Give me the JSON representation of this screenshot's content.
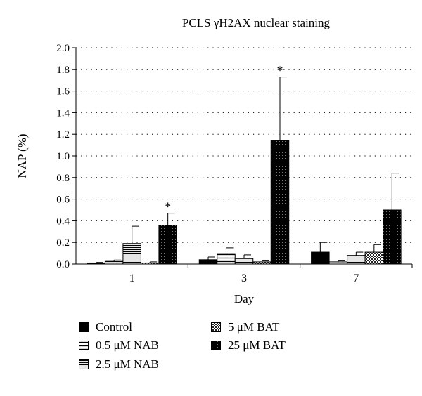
{
  "chart_data": {
    "type": "bar",
    "title": "PCLS γH2AX nuclear staining",
    "xlabel": "Day",
    "ylabel": "NAP (%)",
    "ylim": [
      0,
      2.0
    ],
    "ytick_step": 0.2,
    "grid": "dotted horizontal",
    "categories": [
      "1",
      "3",
      "7"
    ],
    "series": [
      {
        "name": "Control",
        "pattern": "solid",
        "values": [
          0.01,
          0.04,
          0.11
        ],
        "err": [
          0.005,
          0.025,
          0.09
        ]
      },
      {
        "name": "0.5 μM NAB",
        "pattern": "hlines-sparse",
        "values": [
          0.025,
          0.09,
          0.02
        ],
        "err": [
          0.012,
          0.06,
          0.01
        ]
      },
      {
        "name": "2.5 μM NAB",
        "pattern": "hlines-dense",
        "values": [
          0.19,
          0.05,
          0.08
        ],
        "err": [
          0.16,
          0.035,
          0.03
        ]
      },
      {
        "name": "5 μM BAT",
        "pattern": "checker",
        "values": [
          0.01,
          0.02,
          0.11
        ],
        "err": [
          0.01,
          0.01,
          0.07
        ]
      },
      {
        "name": "25 μM BAT",
        "pattern": "dotted-dark",
        "values": [
          0.36,
          1.14,
          0.5
        ],
        "err": [
          0.11,
          0.59,
          0.34
        ]
      }
    ],
    "annotations": [
      {
        "category": "1",
        "series": "25 μM BAT",
        "text": "*"
      },
      {
        "category": "3",
        "series": "25 μM BAT",
        "text": "*"
      }
    ],
    "legend_position": "bottom"
  }
}
